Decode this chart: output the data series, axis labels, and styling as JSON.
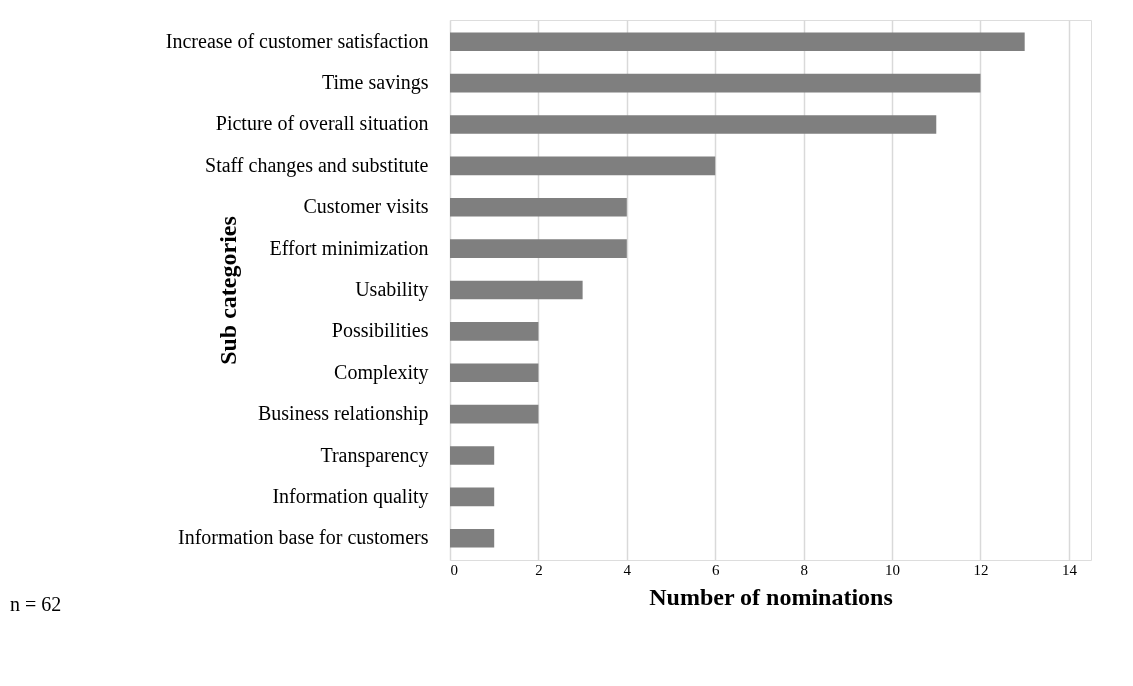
{
  "chart_data": {
    "type": "bar",
    "orientation": "horizontal",
    "categories": [
      "Increase of customer satisfaction",
      "Time savings",
      "Picture of overall situation",
      "Staff changes and substitute",
      "Customer visits",
      "Effort minimization",
      "Usability",
      "Possibilities",
      "Complexity",
      "Business relationship",
      "Transparency",
      "Information quality",
      "Information base for customers"
    ],
    "values": [
      13,
      12,
      11,
      6,
      4,
      4,
      3,
      2,
      2,
      2,
      1,
      1,
      1
    ],
    "color": "#7f7f7f",
    "xlim": [
      0,
      14.5
    ],
    "xticks": [
      0,
      2,
      4,
      6,
      8,
      10,
      12,
      14
    ],
    "grid": "x",
    "xlabel": "Number of nominations",
    "ylabel": "Sub categories",
    "annotations": [
      "n = 62"
    ]
  }
}
